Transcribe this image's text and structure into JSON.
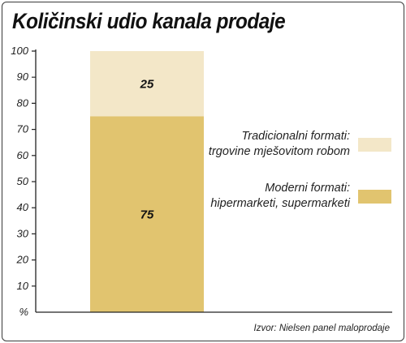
{
  "title": "Količinski udio kanala prodaje",
  "source": "Izvor:  Nielsen panel maloprodaje",
  "colors": {
    "traditional": "#f3e7c8",
    "modern": "#e1c46f",
    "axis": "#222222"
  },
  "chart_data": {
    "type": "bar",
    "stacked": true,
    "categories": [
      ""
    ],
    "series": [
      {
        "name": "Moderni formati: hipermarketi, supermarketi",
        "values": [
          75
        ],
        "label": "75"
      },
      {
        "name": "Tradicionalni formati: trgovine mješovitom robom",
        "values": [
          25
        ],
        "label": "25"
      }
    ],
    "y_ticks": [
      "100",
      "90",
      "80",
      "70",
      "60",
      "50",
      "40",
      "30",
      "20",
      "10",
      "%"
    ],
    "ylim": [
      0,
      100
    ],
    "grid": false,
    "legend_position": "right"
  },
  "legend": [
    {
      "line1": "Tradicionalni formati:",
      "line2": "trgovine mješovitom robom",
      "color": "#f3e7c8"
    },
    {
      "line1": "Moderni formati:",
      "line2": "hipermarketi, supermarketi",
      "color": "#e1c46f"
    }
  ]
}
